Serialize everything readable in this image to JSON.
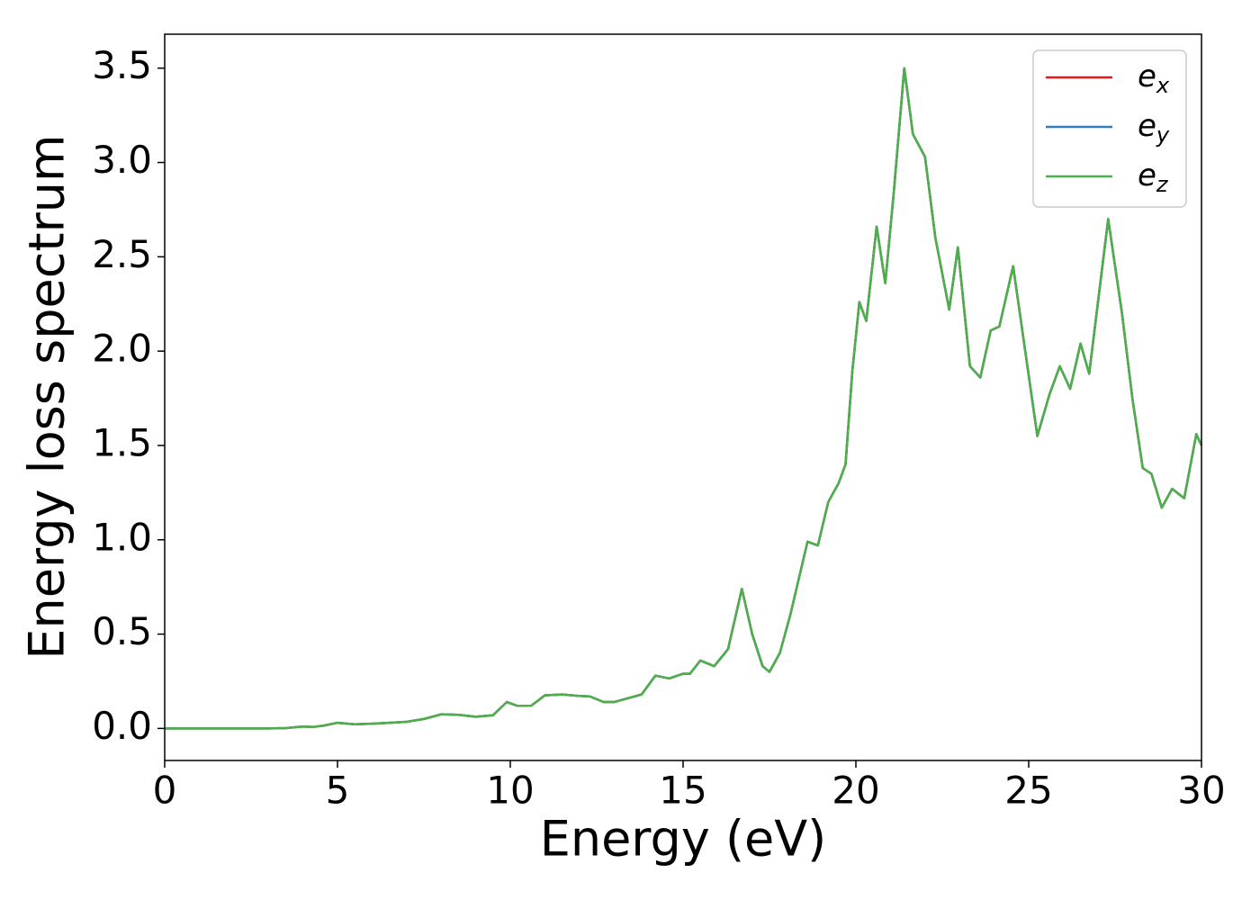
{
  "chart_data": {
    "type": "line",
    "xlabel": "Energy (eV)",
    "ylabel": "Energy loss spectrum",
    "x": [
      0,
      1,
      2,
      3,
      3.5,
      4,
      4.3,
      4.6,
      5,
      5.5,
      6,
      6.5,
      7,
      7.5,
      8,
      8.5,
      9,
      9.5,
      9.9,
      10.2,
      10.6,
      11,
      11.5,
      12,
      12.3,
      12.7,
      13,
      13.5,
      13.8,
      14.2,
      14.6,
      15,
      15.2,
      15.5,
      15.9,
      16.3,
      16.7,
      17,
      17.3,
      17.5,
      17.8,
      18.1,
      18.6,
      18.9,
      19.2,
      19.5,
      19.7,
      19.9,
      20.1,
      20.3,
      20.6,
      20.85,
      21.1,
      21.4,
      21.65,
      22,
      22.3,
      22.7,
      22.95,
      23.3,
      23.6,
      23.9,
      24.15,
      24.55,
      24.9,
      25.25,
      25.6,
      25.9,
      26.2,
      26.5,
      26.75,
      27.3,
      27.7,
      28,
      28.3,
      28.55,
      28.85,
      29.15,
      29.5,
      29.85,
      30
    ],
    "series": [
      {
        "name": "ex",
        "color": "#e41a1c",
        "values": [
          0,
          0,
          0,
          0,
          0.002,
          0.01,
          0.008,
          0.015,
          0.03,
          0.022,
          0.025,
          0.03,
          0.035,
          0.05,
          0.075,
          0.072,
          0.062,
          0.07,
          0.14,
          0.12,
          0.12,
          0.175,
          0.18,
          0.172,
          0.17,
          0.14,
          0.14,
          0.165,
          0.18,
          0.28,
          0.265,
          0.29,
          0.29,
          0.36,
          0.33,
          0.42,
          0.74,
          0.5,
          0.33,
          0.3,
          0.4,
          0.6,
          0.99,
          0.97,
          1.2,
          1.3,
          1.4,
          1.9,
          2.26,
          2.16,
          2.66,
          2.36,
          2.85,
          3.5,
          3.15,
          3.03,
          2.6,
          2.22,
          2.55,
          1.92,
          1.86,
          2.11,
          2.13,
          2.45,
          2.0,
          1.55,
          1.77,
          1.92,
          1.8,
          2.04,
          1.88,
          2.7,
          2.2,
          1.75,
          1.38,
          1.35,
          1.17,
          1.27,
          1.22,
          1.56,
          1.5
        ]
      },
      {
        "name": "ey",
        "color": "#377eb8",
        "values": [
          0,
          0,
          0,
          0,
          0.002,
          0.01,
          0.008,
          0.015,
          0.03,
          0.022,
          0.025,
          0.03,
          0.035,
          0.05,
          0.075,
          0.072,
          0.062,
          0.07,
          0.14,
          0.12,
          0.12,
          0.175,
          0.18,
          0.172,
          0.17,
          0.14,
          0.14,
          0.165,
          0.18,
          0.28,
          0.265,
          0.29,
          0.29,
          0.36,
          0.33,
          0.42,
          0.74,
          0.5,
          0.33,
          0.3,
          0.4,
          0.6,
          0.99,
          0.97,
          1.2,
          1.3,
          1.4,
          1.9,
          2.26,
          2.16,
          2.66,
          2.36,
          2.85,
          3.5,
          3.15,
          3.03,
          2.6,
          2.22,
          2.55,
          1.92,
          1.86,
          2.11,
          2.13,
          2.45,
          2.0,
          1.55,
          1.77,
          1.92,
          1.8,
          2.04,
          1.88,
          2.7,
          2.2,
          1.75,
          1.38,
          1.35,
          1.17,
          1.27,
          1.22,
          1.56,
          1.5
        ]
      },
      {
        "name": "ez",
        "color": "#4daf4a",
        "values": [
          0,
          0,
          0,
          0,
          0.002,
          0.01,
          0.008,
          0.015,
          0.03,
          0.022,
          0.025,
          0.03,
          0.035,
          0.05,
          0.075,
          0.072,
          0.062,
          0.07,
          0.14,
          0.12,
          0.12,
          0.175,
          0.18,
          0.172,
          0.17,
          0.14,
          0.14,
          0.165,
          0.18,
          0.28,
          0.265,
          0.29,
          0.29,
          0.36,
          0.33,
          0.42,
          0.74,
          0.5,
          0.33,
          0.3,
          0.4,
          0.6,
          0.99,
          0.97,
          1.2,
          1.3,
          1.4,
          1.9,
          2.26,
          2.16,
          2.66,
          2.36,
          2.85,
          3.5,
          3.15,
          3.03,
          2.6,
          2.22,
          2.55,
          1.92,
          1.86,
          2.11,
          2.13,
          2.45,
          2.0,
          1.55,
          1.77,
          1.92,
          1.8,
          2.04,
          1.88,
          2.7,
          2.2,
          1.75,
          1.38,
          1.35,
          1.17,
          1.27,
          1.22,
          1.56,
          1.5
        ]
      }
    ],
    "xlim": [
      0,
      30
    ],
    "xticks": [
      0,
      5,
      10,
      15,
      20,
      25,
      30
    ],
    "ylim": [
      -0.17,
      3.68
    ],
    "yticks": [
      {
        "value": 0,
        "label": "0.0"
      },
      0.5,
      {
        "value": 1,
        "label": "1.0"
      },
      1.5,
      {
        "value": 2,
        "label": "2.0"
      },
      2.5,
      {
        "value": 3,
        "label": "3.0"
      },
      3.5
    ],
    "grid": false,
    "legend": "upper right"
  }
}
